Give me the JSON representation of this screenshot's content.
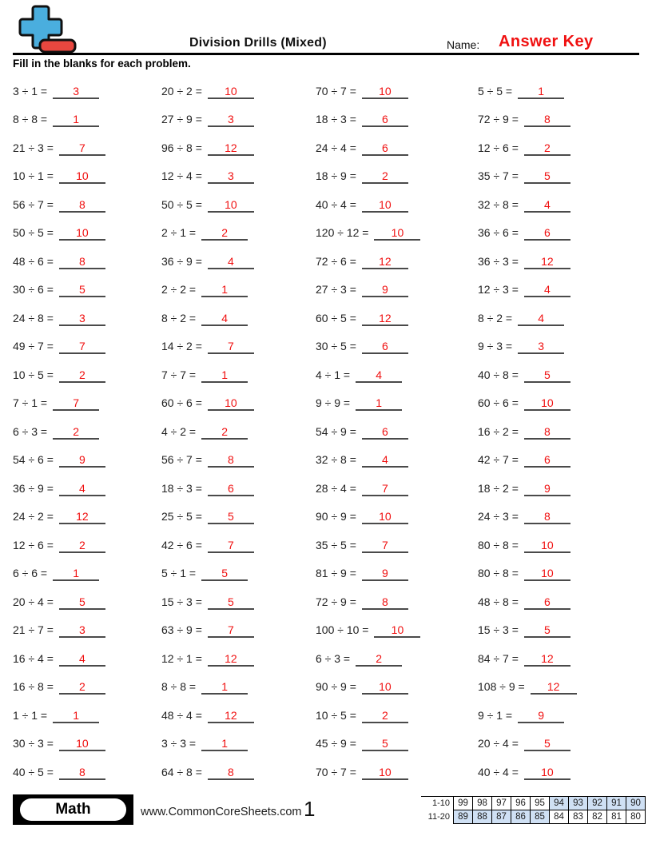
{
  "header": {
    "title": "Division Drills (Mixed)",
    "name_label": "Name:",
    "name_value": "Answer Key",
    "instructions": "Fill in the blanks for each problem."
  },
  "problems": {
    "columns": [
      {
        "items": [
          {
            "q": "3 ÷ 1 =",
            "a": "3"
          },
          {
            "q": "8 ÷ 8 =",
            "a": "1"
          },
          {
            "q": "21 ÷ 3 =",
            "a": "7"
          },
          {
            "q": "10 ÷ 1 =",
            "a": "10"
          },
          {
            "q": "56 ÷ 7 =",
            "a": "8"
          },
          {
            "q": "50 ÷ 5 =",
            "a": "10"
          },
          {
            "q": "48 ÷ 6 =",
            "a": "8"
          },
          {
            "q": "30 ÷ 6 =",
            "a": "5"
          },
          {
            "q": "24 ÷ 8 =",
            "a": "3"
          },
          {
            "q": "49 ÷ 7 =",
            "a": "7"
          },
          {
            "q": "10 ÷ 5 =",
            "a": "2"
          },
          {
            "q": "7 ÷ 1 =",
            "a": "7"
          },
          {
            "q": "6 ÷ 3 =",
            "a": "2"
          },
          {
            "q": "54 ÷ 6 =",
            "a": "9"
          },
          {
            "q": "36 ÷ 9 =",
            "a": "4"
          },
          {
            "q": "24 ÷ 2 =",
            "a": "12"
          },
          {
            "q": "12 ÷ 6 =",
            "a": "2"
          },
          {
            "q": "6 ÷ 6 =",
            "a": "1"
          },
          {
            "q": "20 ÷ 4 =",
            "a": "5"
          },
          {
            "q": "21 ÷ 7 =",
            "a": "3"
          },
          {
            "q": "16 ÷ 4 =",
            "a": "4"
          },
          {
            "q": "16 ÷ 8 =",
            "a": "2"
          },
          {
            "q": "1 ÷ 1 =",
            "a": "1"
          },
          {
            "q": "30 ÷ 3 =",
            "a": "10"
          },
          {
            "q": "40 ÷ 5 =",
            "a": "8"
          }
        ]
      },
      {
        "items": [
          {
            "q": "20 ÷ 2 =",
            "a": "10"
          },
          {
            "q": "27 ÷ 9 =",
            "a": "3"
          },
          {
            "q": "96 ÷ 8 =",
            "a": "12"
          },
          {
            "q": "12 ÷ 4 =",
            "a": "3"
          },
          {
            "q": "50 ÷ 5 =",
            "a": "10"
          },
          {
            "q": "2 ÷ 1 =",
            "a": "2"
          },
          {
            "q": "36 ÷ 9 =",
            "a": "4"
          },
          {
            "q": "2 ÷ 2 =",
            "a": "1"
          },
          {
            "q": "8 ÷ 2 =",
            "a": "4"
          },
          {
            "q": "14 ÷ 2 =",
            "a": "7"
          },
          {
            "q": "7 ÷ 7 =",
            "a": "1"
          },
          {
            "q": "60 ÷ 6 =",
            "a": "10"
          },
          {
            "q": "4 ÷ 2 =",
            "a": "2"
          },
          {
            "q": "56 ÷ 7 =",
            "a": "8"
          },
          {
            "q": "18 ÷ 3 =",
            "a": "6"
          },
          {
            "q": "25 ÷ 5 =",
            "a": "5"
          },
          {
            "q": "42 ÷ 6 =",
            "a": "7"
          },
          {
            "q": "5 ÷ 1 =",
            "a": "5"
          },
          {
            "q": "15 ÷ 3 =",
            "a": "5"
          },
          {
            "q": "63 ÷ 9 =",
            "a": "7"
          },
          {
            "q": "12 ÷ 1 =",
            "a": "12"
          },
          {
            "q": "8 ÷ 8 =",
            "a": "1"
          },
          {
            "q": "48 ÷ 4 =",
            "a": "12"
          },
          {
            "q": "3 ÷ 3 =",
            "a": "1"
          },
          {
            "q": "64 ÷ 8 =",
            "a": "8"
          }
        ]
      },
      {
        "items": [
          {
            "q": "70 ÷ 7 =",
            "a": "10"
          },
          {
            "q": "18 ÷ 3 =",
            "a": "6"
          },
          {
            "q": "24 ÷ 4 =",
            "a": "6"
          },
          {
            "q": "18 ÷ 9 =",
            "a": "2"
          },
          {
            "q": "40 ÷ 4 =",
            "a": "10"
          },
          {
            "q": "120 ÷ 12 =",
            "a": "10"
          },
          {
            "q": "72 ÷ 6 =",
            "a": "12"
          },
          {
            "q": "27 ÷ 3 =",
            "a": "9"
          },
          {
            "q": "60 ÷ 5 =",
            "a": "12"
          },
          {
            "q": "30 ÷ 5 =",
            "a": "6"
          },
          {
            "q": "4 ÷ 1 =",
            "a": "4"
          },
          {
            "q": "9 ÷ 9 =",
            "a": "1"
          },
          {
            "q": "54 ÷ 9 =",
            "a": "6"
          },
          {
            "q": "32 ÷ 8 =",
            "a": "4"
          },
          {
            "q": "28 ÷ 4 =",
            "a": "7"
          },
          {
            "q": "90 ÷ 9 =",
            "a": "10"
          },
          {
            "q": "35 ÷ 5 =",
            "a": "7"
          },
          {
            "q": "81 ÷ 9 =",
            "a": "9"
          },
          {
            "q": "72 ÷ 9 =",
            "a": "8"
          },
          {
            "q": "100 ÷ 10 =",
            "a": "10"
          },
          {
            "q": "6 ÷ 3 =",
            "a": "2"
          },
          {
            "q": "90 ÷ 9 =",
            "a": "10"
          },
          {
            "q": "10 ÷ 5 =",
            "a": "2"
          },
          {
            "q": "45 ÷ 9 =",
            "a": "5"
          },
          {
            "q": "70 ÷ 7 =",
            "a": "10"
          }
        ]
      },
      {
        "items": [
          {
            "q": "5 ÷ 5 =",
            "a": "1"
          },
          {
            "q": "72 ÷ 9 =",
            "a": "8"
          },
          {
            "q": "12 ÷ 6 =",
            "a": "2"
          },
          {
            "q": "35 ÷ 7 =",
            "a": "5"
          },
          {
            "q": "32 ÷ 8 =",
            "a": "4"
          },
          {
            "q": "36 ÷ 6 =",
            "a": "6"
          },
          {
            "q": "36 ÷ 3 =",
            "a": "12"
          },
          {
            "q": "12 ÷ 3 =",
            "a": "4"
          },
          {
            "q": "8 ÷ 2 =",
            "a": "4"
          },
          {
            "q": "9 ÷ 3 =",
            "a": "3"
          },
          {
            "q": "40 ÷ 8 =",
            "a": "5"
          },
          {
            "q": "60 ÷ 6 =",
            "a": "10"
          },
          {
            "q": "16 ÷ 2 =",
            "a": "8"
          },
          {
            "q": "42 ÷ 7 =",
            "a": "6"
          },
          {
            "q": "18 ÷ 2 =",
            "a": "9"
          },
          {
            "q": "24 ÷ 3 =",
            "a": "8"
          },
          {
            "q": "80 ÷ 8 =",
            "a": "10"
          },
          {
            "q": "80 ÷ 8 =",
            "a": "10"
          },
          {
            "q": "48 ÷ 8 =",
            "a": "6"
          },
          {
            "q": "15 ÷ 3 =",
            "a": "5"
          },
          {
            "q": "84 ÷ 7 =",
            "a": "12"
          },
          {
            "q": "108 ÷ 9 =",
            "a": "12"
          },
          {
            "q": "9 ÷ 1 =",
            "a": "9"
          },
          {
            "q": "20 ÷ 4 =",
            "a": "5"
          },
          {
            "q": "40 ÷ 4 =",
            "a": "10"
          }
        ]
      }
    ]
  },
  "footer": {
    "subject_badge": "Math",
    "website": "www.CommonCoreSheets.com",
    "page_number": "1",
    "score_table": {
      "rows": [
        {
          "label": "1-10",
          "cells": [
            {
              "v": "99",
              "hl": false
            },
            {
              "v": "98",
              "hl": false
            },
            {
              "v": "97",
              "hl": false
            },
            {
              "v": "96",
              "hl": false
            },
            {
              "v": "95",
              "hl": false
            },
            {
              "v": "94",
              "hl": true
            },
            {
              "v": "93",
              "hl": true
            },
            {
              "v": "92",
              "hl": true
            },
            {
              "v": "91",
              "hl": true
            },
            {
              "v": "90",
              "hl": true
            }
          ]
        },
        {
          "label": "11-20",
          "cells": [
            {
              "v": "89",
              "hl": true
            },
            {
              "v": "88",
              "hl": true
            },
            {
              "v": "87",
              "hl": true
            },
            {
              "v": "86",
              "hl": true
            },
            {
              "v": "85",
              "hl": true
            },
            {
              "v": "84",
              "hl": false
            },
            {
              "v": "83",
              "hl": false
            },
            {
              "v": "82",
              "hl": false
            },
            {
              "v": "81",
              "hl": false
            },
            {
              "v": "80",
              "hl": false
            }
          ]
        }
      ]
    }
  },
  "colors": {
    "answer_red": "#f01010",
    "table_hl": "#cfe0f4",
    "logo_blue": "#4aaede",
    "logo_red": "#e8473f"
  }
}
